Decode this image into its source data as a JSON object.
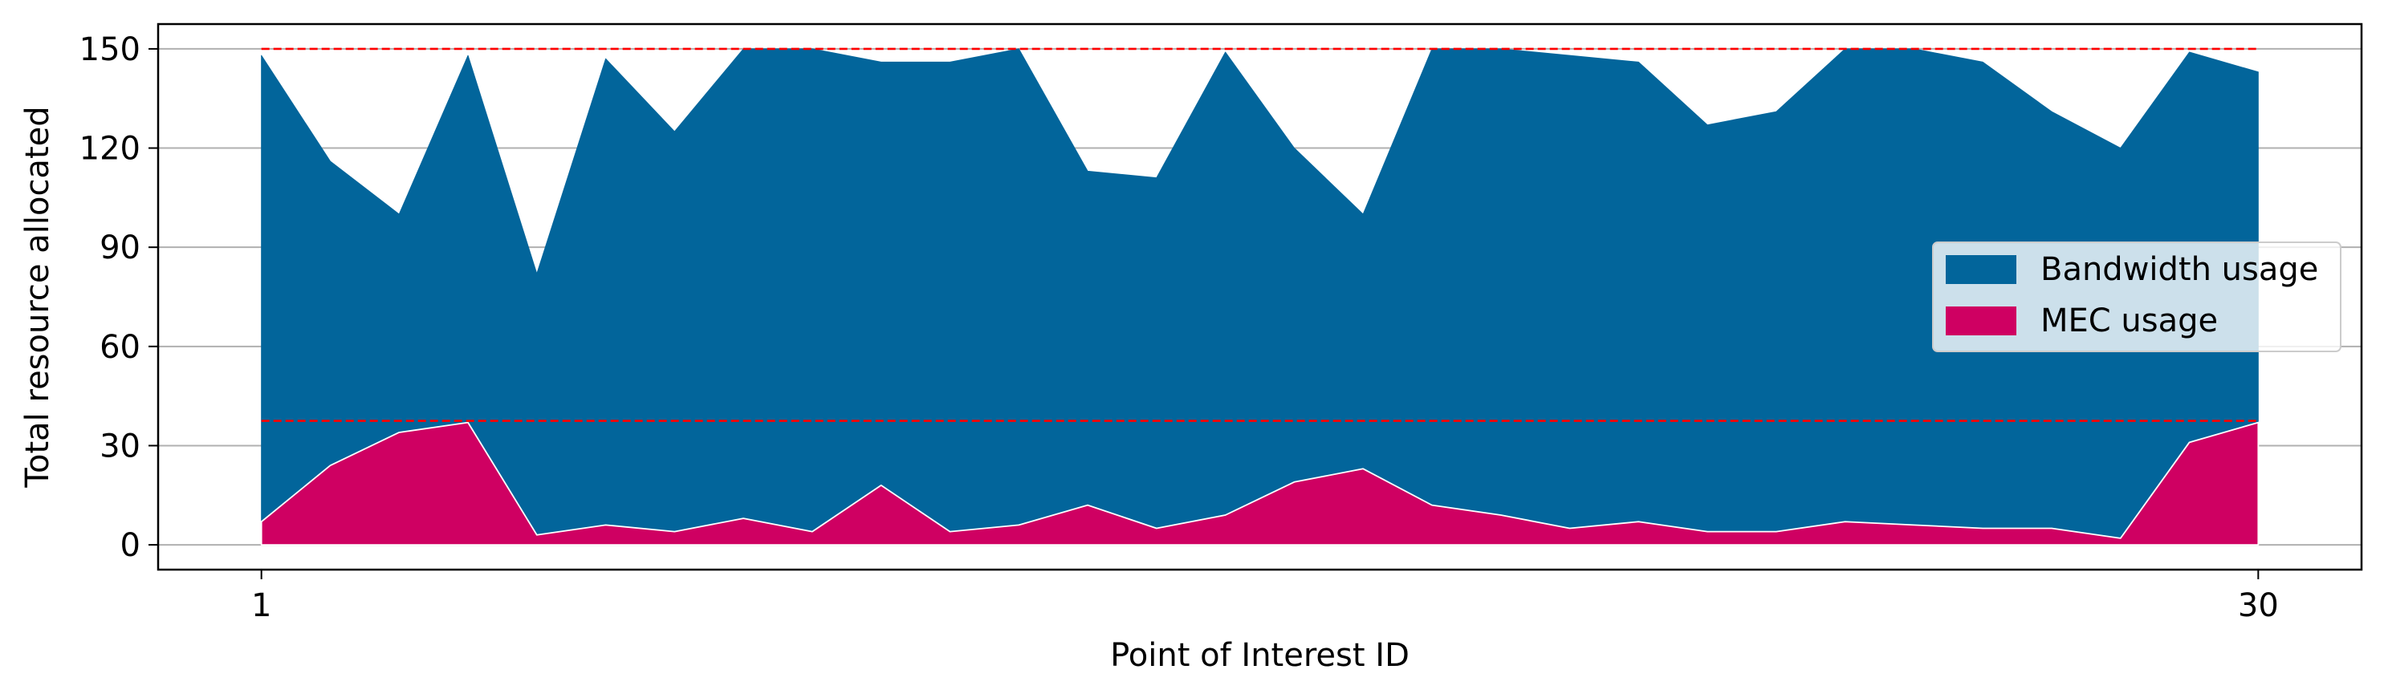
{
  "chart_data": {
    "type": "area",
    "title": "",
    "xlabel": "Point of Interest ID",
    "ylabel": "Total resource allocated",
    "x": [
      1,
      2,
      3,
      4,
      5,
      6,
      7,
      8,
      9,
      10,
      11,
      12,
      13,
      14,
      15,
      16,
      17,
      18,
      19,
      20,
      21,
      22,
      23,
      24,
      25,
      26,
      27,
      28,
      29,
      30
    ],
    "xticks": [
      1,
      30
    ],
    "xlim": [
      -0.5,
      31.5
    ],
    "yticks": [
      0,
      30,
      60,
      90,
      120,
      150
    ],
    "ylim": [
      -7.5,
      157.5
    ],
    "grid": "horizontal",
    "legend_position": "center-right",
    "series": [
      {
        "name": "Bandwidth usage",
        "color": "#02659b",
        "values": [
          148,
          116,
          100,
          148,
          82,
          147,
          125,
          150,
          150,
          146,
          146,
          150,
          113,
          111,
          149,
          120,
          100,
          150,
          150,
          148,
          146,
          127,
          131,
          150,
          150,
          146,
          131,
          120,
          149,
          143
        ]
      },
      {
        "name": "MEC usage",
        "color": "#cf0062",
        "values": [
          7,
          24,
          34,
          37,
          3,
          6,
          4,
          8,
          4,
          18,
          4,
          6,
          12,
          5,
          9,
          19,
          23,
          12,
          9,
          5,
          7,
          4,
          4,
          7,
          6,
          5,
          5,
          2,
          31,
          37
        ]
      }
    ],
    "reference_lines": [
      {
        "y": 150,
        "color": "#ff0000",
        "style": "dashed"
      },
      {
        "y": 37.5,
        "color": "#ff0000",
        "style": "dashed"
      }
    ]
  }
}
